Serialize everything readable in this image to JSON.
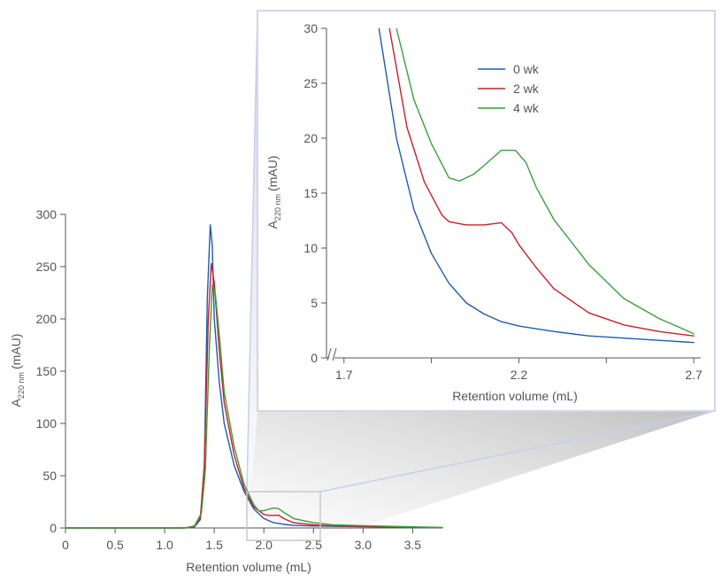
{
  "chart_data": [
    {
      "type": "line",
      "title": "",
      "xlabel": "Retention volume (mL)",
      "ylabel_main": "A",
      "ylabel_sub": "220 nm",
      "ylabel_unit": "(mAU)",
      "xlim": [
        0,
        3.8
      ],
      "ylim": [
        0,
        300
      ],
      "xticks": [
        0,
        0.5,
        1.0,
        1.5,
        2.0,
        2.5,
        3.0,
        3.5
      ],
      "xtick_labels": [
        "0",
        "0.5",
        "1.0",
        "1.5",
        "2.0",
        "2.5",
        "3.0",
        "3.5"
      ],
      "yticks": [
        0,
        50,
        100,
        150,
        200,
        250,
        300
      ],
      "ytick_labels": [
        "0",
        "50",
        "100",
        "150",
        "200",
        "250",
        "300"
      ],
      "series": [
        {
          "color": "#1f5ca8",
          "x": [
            0,
            1.0,
            1.2,
            1.3,
            1.36,
            1.4,
            1.43,
            1.46,
            1.48,
            1.5,
            1.55,
            1.6,
            1.7,
            1.8,
            1.9,
            2.0,
            2.1,
            2.2,
            2.3,
            2.5,
            2.7,
            3.0,
            3.3,
            3.8
          ],
          "y": [
            0,
            0,
            0,
            1,
            8,
            60,
            220,
            290,
            270,
            200,
            140,
            100,
            60,
            35,
            18,
            9,
            5,
            3.5,
            2.5,
            2,
            1.6,
            1.2,
            0.8,
            0.3
          ]
        },
        {
          "color": "#c8202a",
          "x": [
            0,
            1.0,
            1.2,
            1.3,
            1.36,
            1.4,
            1.44,
            1.47,
            1.5,
            1.55,
            1.6,
            1.7,
            1.8,
            1.9,
            2.0,
            2.05,
            2.1,
            2.15,
            2.2,
            2.3,
            2.5,
            2.7,
            3.0,
            3.3,
            3.8
          ],
          "y": [
            0,
            0,
            0,
            1.5,
            10,
            60,
            200,
            253,
            235,
            170,
            120,
            70,
            38,
            20,
            13,
            12,
            12,
            12.2,
            9,
            5,
            3,
            2,
            1.5,
            1,
            0.4
          ]
        },
        {
          "color": "#3b9e3b",
          "x": [
            0,
            1.0,
            1.2,
            1.3,
            1.37,
            1.41,
            1.45,
            1.48,
            1.51,
            1.56,
            1.6,
            1.7,
            1.8,
            1.9,
            1.95,
            2.0,
            2.05,
            2.1,
            2.15,
            2.2,
            2.3,
            2.5,
            2.7,
            2.9,
            3.0,
            3.3,
            3.8
          ],
          "y": [
            0,
            0,
            0,
            2,
            14,
            55,
            170,
            232,
            225,
            175,
            130,
            78,
            42,
            22,
            16.5,
            16.5,
            18,
            19,
            18.5,
            15,
            9,
            5,
            3,
            2.5,
            2.2,
            1.5,
            0.5
          ]
        }
      ]
    },
    {
      "type": "line",
      "title": "",
      "xlabel": "Retention volume (mL)",
      "ylabel_main": "A",
      "ylabel_sub": "220 nm",
      "ylabel_unit": "(mAU)",
      "xlim": [
        1.65,
        2.72
      ],
      "ylim": [
        0,
        30
      ],
      "xticks": [
        1.7,
        1.95,
        2.2,
        2.45,
        2.7
      ],
      "xtick_labels": [
        "1.7",
        "",
        "2.2",
        "",
        "2.7"
      ],
      "yticks": [
        0,
        5,
        10,
        15,
        20,
        25,
        30
      ],
      "ytick_labels": [
        "0",
        "5",
        "10",
        "15",
        "20",
        "25",
        "30"
      ],
      "axis_break": true,
      "legend": {
        "placement": "top-center"
      },
      "series": [
        {
          "name": "0 wk",
          "color": "#1f5ca8",
          "x": [
            1.8,
            1.85,
            1.9,
            1.95,
            2.0,
            2.05,
            2.1,
            2.15,
            2.2,
            2.3,
            2.4,
            2.5,
            2.6,
            2.7
          ],
          "y": [
            30,
            20,
            13.5,
            9.5,
            6.8,
            5.0,
            4.0,
            3.3,
            2.9,
            2.4,
            2.0,
            1.8,
            1.6,
            1.4
          ]
        },
        {
          "name": "2 wk",
          "color": "#c8202a",
          "x": [
            1.83,
            1.88,
            1.93,
            1.98,
            2.0,
            2.05,
            2.1,
            2.15,
            2.18,
            2.2,
            2.25,
            2.3,
            2.4,
            2.5,
            2.6,
            2.7
          ],
          "y": [
            30,
            21,
            16,
            13,
            12.4,
            12.1,
            12.1,
            12.3,
            11.4,
            10.3,
            8.2,
            6.3,
            4.1,
            3.0,
            2.4,
            2.0
          ]
        },
        {
          "name": "4 wk",
          "color": "#3b9e3b",
          "x": [
            1.85,
            1.9,
            1.95,
            2.0,
            2.03,
            2.07,
            2.1,
            2.15,
            2.19,
            2.22,
            2.25,
            2.3,
            2.4,
            2.5,
            2.6,
            2.7
          ],
          "y": [
            30,
            23.5,
            19.5,
            16.4,
            16.1,
            16.7,
            17.5,
            18.9,
            18.9,
            17.8,
            15.5,
            12.6,
            8.5,
            5.4,
            3.6,
            2.2
          ]
        }
      ]
    }
  ]
}
